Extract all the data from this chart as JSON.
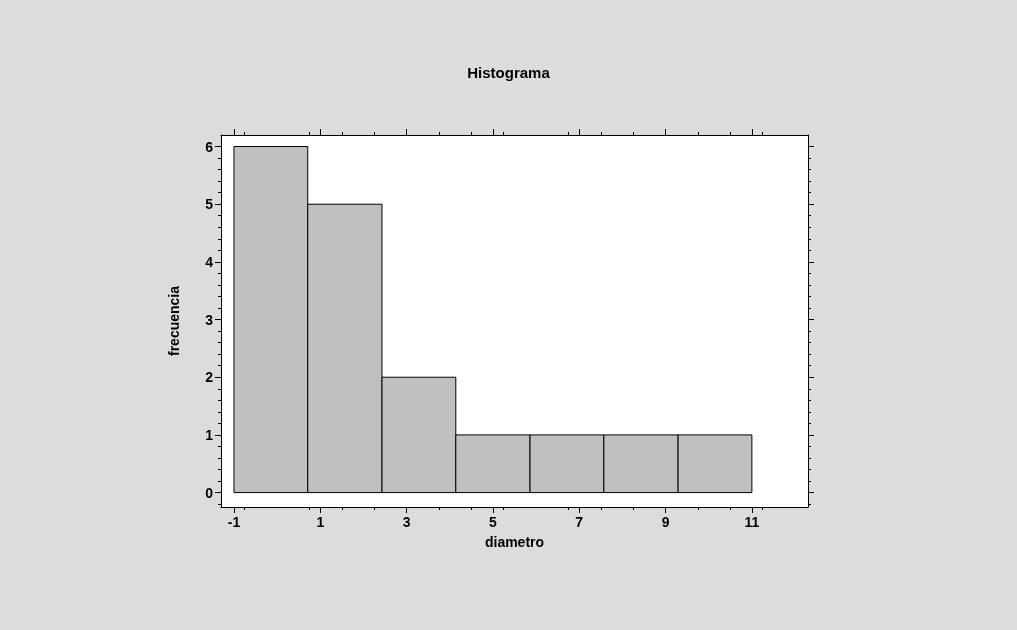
{
  "chart_data": {
    "type": "histogram",
    "title": "Histograma",
    "xlabel": "diametro",
    "ylabel": "frecuencia",
    "bins": [
      -1,
      0.71,
      2.43,
      4.14,
      5.86,
      7.57,
      9.29,
      11
    ],
    "values": [
      6,
      5,
      2,
      1,
      1,
      1,
      1
    ],
    "color": "#c0c0c0",
    "xlim": [
      -1.3,
      12.3
    ],
    "xticks": [
      -1,
      1,
      3,
      5,
      7,
      9,
      11
    ],
    "ylim": [
      -0.25,
      6.2
    ],
    "yticks": [
      0,
      1,
      2,
      3,
      4,
      5,
      6
    ],
    "grid": false
  }
}
